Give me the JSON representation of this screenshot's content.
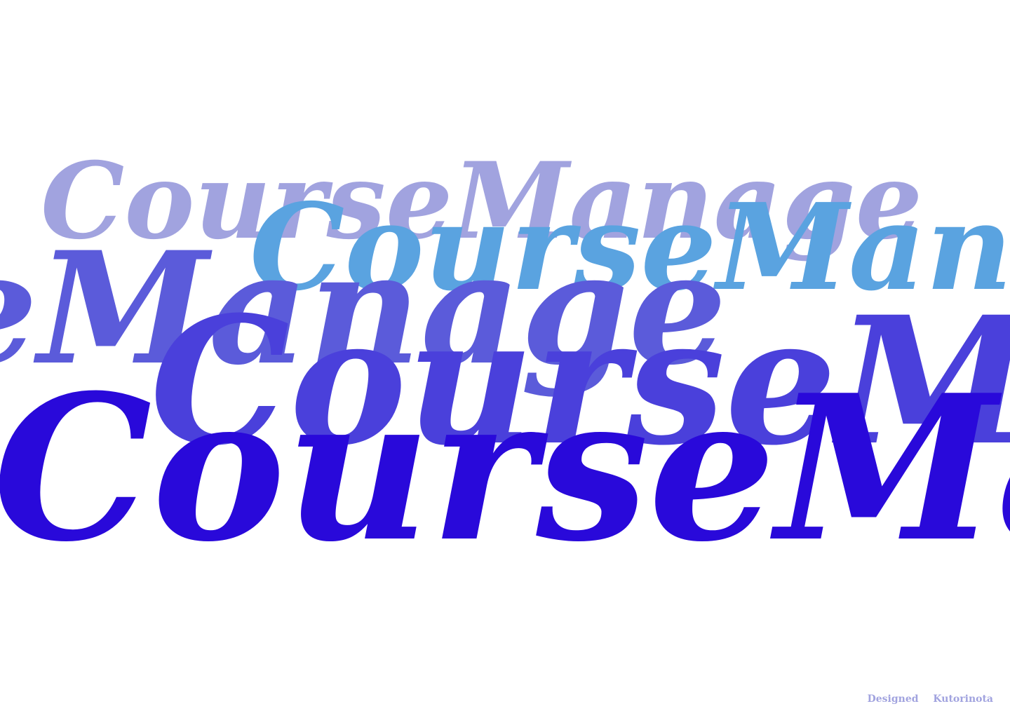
{
  "layers": [
    {
      "text": "CourseManage",
      "color": "#A1A3DF"
    },
    {
      "text": "CourseMan",
      "color": "#5AA3E0"
    },
    {
      "text": "seManage",
      "color": "#5B5BDA"
    },
    {
      "text": "CourseMa",
      "color": "#4A40DB"
    },
    {
      "text": "CourseMa",
      "color": "#2909DA"
    }
  ],
  "credit": {
    "designed": "Designed",
    "author": "Kutorinota",
    "color": "#A1A3DF"
  }
}
